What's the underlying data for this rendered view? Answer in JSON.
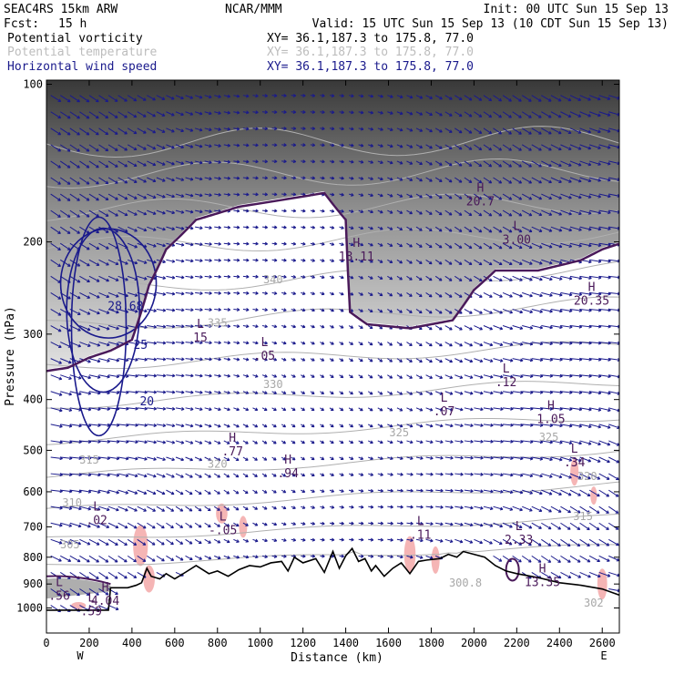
{
  "header": {
    "model": "SEAC4RS 15km ARW",
    "org": "NCAR/MMM",
    "init": "Init: 00 UTC Sun 15 Sep 13",
    "fcst_label": "Fcst:",
    "fcst_value": "15 h",
    "valid": "Valid: 15 UTC Sun 15 Sep 13 (10 CDT Sun 15 Sep 13)"
  },
  "legend": [
    {
      "name": "Potential vorticity",
      "color": "#000000",
      "xy": "XY=  36.1,187.3 to 175.8, 77.0"
    },
    {
      "name": "Potential temperature",
      "color": "#bdbdbd",
      "xy": "XY=  36.1,187.3 to 175.8, 77.0"
    },
    {
      "name": "Horizontal wind speed",
      "color": "#1a1a8c",
      "xy": "XY=  36.1,187.3 to 175.8, 77.0"
    }
  ],
  "colors": {
    "pv_fill_dark": "#3a3a3a",
    "pv_fill_light": "#e6e6e6",
    "pv_contour": "#4a1a5a",
    "theta": "#b0b0b0",
    "wind_contour": "#1a1a8c",
    "vectors": "#1a1a8c",
    "pink": "#f5b5b5",
    "terrain": "#000000"
  },
  "icons": {
    "wind_vector": "arrow-icon"
  },
  "chart_data": {
    "type": "cross-section",
    "xlabel": "Distance (km)",
    "ylabel": "Pressure (hPa)",
    "xlim": [
      0,
      2680
    ],
    "ylim": [
      1050,
      100
    ],
    "y_log_scale": true,
    "x_ticks": [
      "0",
      "200",
      "400",
      "600",
      "800",
      "1000",
      "1200",
      "1400",
      "1600",
      "1800",
      "2000",
      "2200",
      "2400",
      "2600"
    ],
    "y_ticks": [
      "100",
      "200",
      "300",
      "400",
      "500",
      "600",
      "700",
      "800",
      "900",
      "1000"
    ],
    "endpoint_labels": [
      "W",
      "E"
    ],
    "terrain": [
      {
        "x": 0,
        "p": 1010
      },
      {
        "x": 290,
        "p": 1010
      },
      {
        "x": 300,
        "p": 915
      },
      {
        "x": 380,
        "p": 915
      },
      {
        "x": 420,
        "p": 905
      },
      {
        "x": 445,
        "p": 895
      },
      {
        "x": 470,
        "p": 840
      },
      {
        "x": 490,
        "p": 870
      },
      {
        "x": 530,
        "p": 880
      },
      {
        "x": 560,
        "p": 860
      },
      {
        "x": 600,
        "p": 880
      },
      {
        "x": 650,
        "p": 855
      },
      {
        "x": 700,
        "p": 830
      },
      {
        "x": 760,
        "p": 860
      },
      {
        "x": 800,
        "p": 850
      },
      {
        "x": 850,
        "p": 870
      },
      {
        "x": 900,
        "p": 845
      },
      {
        "x": 950,
        "p": 830
      },
      {
        "x": 1000,
        "p": 835
      },
      {
        "x": 1050,
        "p": 820
      },
      {
        "x": 1100,
        "p": 815
      },
      {
        "x": 1130,
        "p": 850
      },
      {
        "x": 1160,
        "p": 800
      },
      {
        "x": 1200,
        "p": 820
      },
      {
        "x": 1260,
        "p": 805
      },
      {
        "x": 1300,
        "p": 855
      },
      {
        "x": 1340,
        "p": 780
      },
      {
        "x": 1370,
        "p": 840
      },
      {
        "x": 1400,
        "p": 795
      },
      {
        "x": 1430,
        "p": 770
      },
      {
        "x": 1460,
        "p": 815
      },
      {
        "x": 1490,
        "p": 805
      },
      {
        "x": 1520,
        "p": 850
      },
      {
        "x": 1540,
        "p": 830
      },
      {
        "x": 1580,
        "p": 870
      },
      {
        "x": 1620,
        "p": 840
      },
      {
        "x": 1660,
        "p": 820
      },
      {
        "x": 1700,
        "p": 860
      },
      {
        "x": 1740,
        "p": 815
      },
      {
        "x": 1780,
        "p": 810
      },
      {
        "x": 1840,
        "p": 805
      },
      {
        "x": 1880,
        "p": 790
      },
      {
        "x": 1920,
        "p": 800
      },
      {
        "x": 1950,
        "p": 780
      },
      {
        "x": 2000,
        "p": 790
      },
      {
        "x": 2050,
        "p": 800
      },
      {
        "x": 2100,
        "p": 830
      },
      {
        "x": 2150,
        "p": 850
      },
      {
        "x": 2200,
        "p": 860
      },
      {
        "x": 2300,
        "p": 875
      },
      {
        "x": 2400,
        "p": 895
      },
      {
        "x": 2500,
        "p": 905
      },
      {
        "x": 2600,
        "p": 920
      },
      {
        "x": 2680,
        "p": 945
      }
    ],
    "extremes": [
      {
        "kind": "H",
        "value": "18.11",
        "x": 1450,
        "p": 210
      },
      {
        "kind": "H",
        "value": "20.7",
        "x": 2030,
        "p": 165
      },
      {
        "kind": "L",
        "value": "3.00",
        "x": 2200,
        "p": 195
      },
      {
        "kind": "H",
        "value": "20.35",
        "x": 2550,
        "p": 255
      },
      {
        "kind": "L",
        "value": "15",
        "x": 720,
        "p": 300
      },
      {
        "kind": "L",
        "value": ".05",
        "x": 1020,
        "p": 325
      },
      {
        "kind": "L",
        "value": ".12",
        "x": 2150,
        "p": 365
      },
      {
        "kind": "L",
        "value": ".07",
        "x": 1860,
        "p": 415
      },
      {
        "kind": "H",
        "value": "1.05",
        "x": 2360,
        "p": 430
      },
      {
        "kind": "H",
        "value": ".77",
        "x": 870,
        "p": 495
      },
      {
        "kind": "H",
        "value": ".94",
        "x": 1130,
        "p": 545
      },
      {
        "kind": "L",
        "value": ".34",
        "x": 2470,
        "p": 520
      },
      {
        "kind": "L",
        "value": ".02",
        "x": 235,
        "p": 670
      },
      {
        "kind": "L",
        "value": "-.05",
        "x": 825,
        "p": 700
      },
      {
        "kind": "L",
        "value": ".11",
        "x": 1750,
        "p": 715
      },
      {
        "kind": "L",
        "value": "2.33",
        "x": 2210,
        "p": 730
      },
      {
        "kind": "H",
        "value": "13.35",
        "x": 2320,
        "p": 880
      },
      {
        "kind": "H",
        "value": "4.04",
        "x": 275,
        "p": 955
      },
      {
        "kind": "L",
        "value": ".56",
        "x": 60,
        "p": 935
      },
      {
        "kind": "L",
        "value": ".59",
        "x": 210,
        "p": 1000
      }
    ],
    "theta_labels": [
      {
        "value": "340",
        "x": 1060,
        "p": 240
      },
      {
        "value": "335",
        "x": 800,
        "p": 290
      },
      {
        "value": "330",
        "x": 1060,
        "p": 380
      },
      {
        "value": "325",
        "x": 1650,
        "p": 470
      },
      {
        "value": "325",
        "x": 2350,
        "p": 480
      },
      {
        "value": "320",
        "x": 800,
        "p": 540
      },
      {
        "value": "315",
        "x": 200,
        "p": 530
      },
      {
        "value": "310",
        "x": 120,
        "p": 640
      },
      {
        "value": "305",
        "x": 110,
        "p": 770
      },
      {
        "value": "320",
        "x": 2530,
        "p": 570
      },
      {
        "value": "315",
        "x": 2510,
        "p": 680
      },
      {
        "value": "302",
        "x": 2560,
        "p": 995
      },
      {
        "value": "300.8",
        "x": 1960,
        "p": 910
      }
    ],
    "wind_labels": [
      {
        "value": "25",
        "x": 440,
        "p": 320
      },
      {
        "value": "20",
        "x": 470,
        "p": 410
      },
      {
        "value": "28.68",
        "x": 370,
        "p": 270
      }
    ]
  }
}
